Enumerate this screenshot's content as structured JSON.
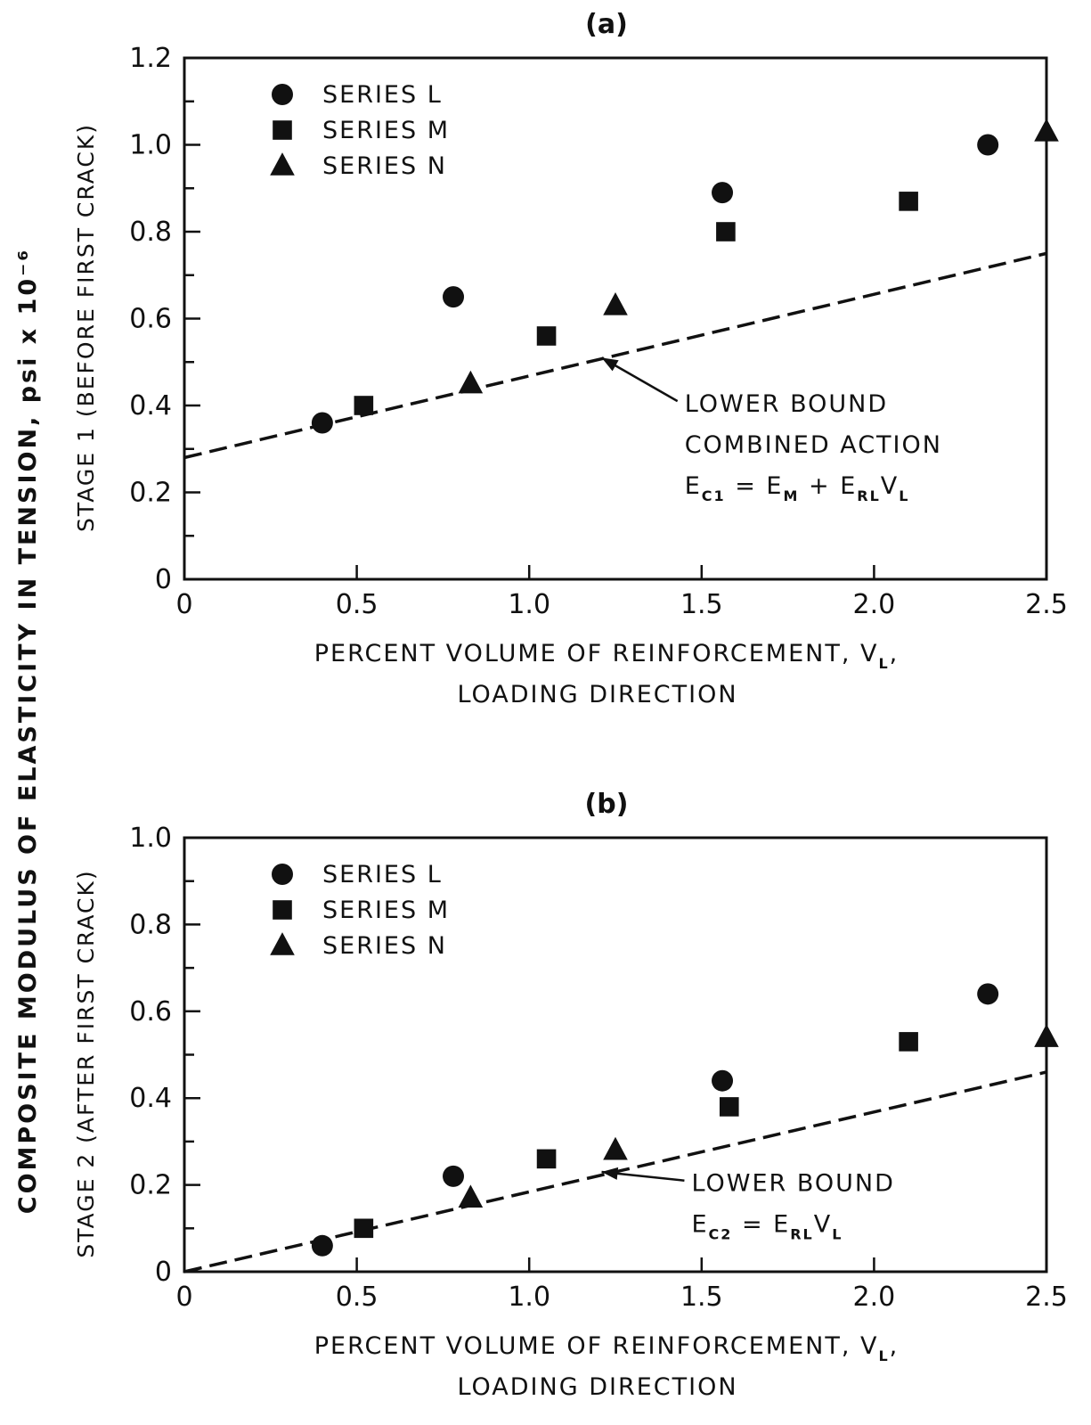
{
  "figure": {
    "shared_ylabel": "COMPOSITE MODULUS OF ELASTICITY IN TENSION, psi x 10⁻⁶"
  },
  "chart_data": [
    {
      "type": "scatter",
      "panel_label": "(a)",
      "title": "",
      "ylabel": "STAGE 1 (BEFORE FIRST CRACK)",
      "xlabel_line1": "PERCENT VOLUME OF REINFORCEMENT, V",
      "xlabel_sub": "L",
      "xlabel_suffix": ",",
      "xlabel_line2": "LOADING DIRECTION",
      "xlim": [
        0,
        2.5
      ],
      "ylim": [
        0,
        1.2
      ],
      "xticks": [
        0,
        0.5,
        1.0,
        1.5,
        2.0,
        2.5
      ],
      "xtick_labels": [
        "0",
        "0.5",
        "1.0",
        "1.5",
        "2.0",
        "2.5"
      ],
      "yticks": [
        0,
        0.2,
        0.4,
        0.6,
        0.8,
        1.0,
        1.2
      ],
      "ytick_labels": [
        "0",
        "0.2",
        "0.4",
        "0.6",
        "0.8",
        "1.0",
        "1.2"
      ],
      "grid": false,
      "legend_position": "top-left",
      "series": [
        {
          "name": "SERIES  L",
          "marker": "circle",
          "points": [
            [
              0.4,
              0.36
            ],
            [
              0.78,
              0.65
            ],
            [
              1.56,
              0.89
            ],
            [
              2.33,
              1.0
            ]
          ]
        },
        {
          "name": "SERIES  M",
          "marker": "square",
          "points": [
            [
              0.52,
              0.4
            ],
            [
              1.05,
              0.56
            ],
            [
              1.57,
              0.8
            ],
            [
              2.1,
              0.87
            ]
          ]
        },
        {
          "name": "SERIES  N",
          "marker": "triangle",
          "points": [
            [
              0.83,
              0.45
            ],
            [
              1.25,
              0.63
            ],
            [
              2.5,
              1.03
            ]
          ]
        }
      ],
      "lower_bound": {
        "x": [
          0,
          2.5
        ],
        "y": [
          0.28,
          0.75
        ]
      },
      "annotation": {
        "arrow_from": [
          1.43,
          0.41
        ],
        "arrow_to": [
          1.21,
          0.51
        ],
        "line1": "LOWER  BOUND",
        "line2": "COMBINED  ACTION",
        "formula": {
          "e1": "E",
          "e1_sub": "C1",
          "eq": "=",
          "e2": "E",
          "e2_sub": "M",
          "plus": "+",
          "e3": "E",
          "e3_sub": "RL",
          "v": "V",
          "v_sub": "L"
        }
      }
    },
    {
      "type": "scatter",
      "panel_label": "(b)",
      "title": "",
      "ylabel": "STAGE 2 (AFTER FIRST CRACK)",
      "xlabel_line1": "PERCENT VOLUME OF REINFORCEMENT, V",
      "xlabel_sub": "L",
      "xlabel_suffix": ",",
      "xlabel_line2": "LOADING DIRECTION",
      "xlim": [
        0,
        2.5
      ],
      "ylim": [
        0,
        1.0
      ],
      "xticks": [
        0,
        0.5,
        1.0,
        1.5,
        2.0,
        2.5
      ],
      "xtick_labels": [
        "0",
        "0.5",
        "1.0",
        "1.5",
        "2.0",
        "2.5"
      ],
      "yticks": [
        0,
        0.2,
        0.4,
        0.6,
        0.8,
        1.0
      ],
      "ytick_labels": [
        "0",
        "0.2",
        "0.4",
        "0.6",
        "0.8",
        "1.0"
      ],
      "grid": false,
      "legend_position": "top-left",
      "series": [
        {
          "name": "SERIES  L",
          "marker": "circle",
          "points": [
            [
              0.4,
              0.06
            ],
            [
              0.78,
              0.22
            ],
            [
              1.56,
              0.44
            ],
            [
              2.33,
              0.64
            ]
          ]
        },
        {
          "name": "SERIES  M",
          "marker": "square",
          "points": [
            [
              0.52,
              0.1
            ],
            [
              1.05,
              0.26
            ],
            [
              1.58,
              0.38
            ],
            [
              2.1,
              0.53
            ]
          ]
        },
        {
          "name": "SERIES  N",
          "marker": "triangle",
          "points": [
            [
              0.83,
              0.17
            ],
            [
              1.25,
              0.28
            ],
            [
              2.5,
              0.54
            ]
          ]
        }
      ],
      "lower_bound": {
        "x": [
          0,
          2.5
        ],
        "y": [
          0,
          0.46
        ]
      },
      "annotation": {
        "arrow_from": [
          1.45,
          0.21
        ],
        "arrow_to": [
          1.21,
          0.23
        ],
        "line1": "LOWER  BOUND",
        "line2": "",
        "formula": {
          "e1": "E",
          "e1_sub": "C2",
          "eq": "=",
          "e2": "E",
          "e2_sub": "RL",
          "plus": "",
          "e3": "",
          "e3_sub": "",
          "v": "V",
          "v_sub": "L"
        }
      }
    }
  ]
}
